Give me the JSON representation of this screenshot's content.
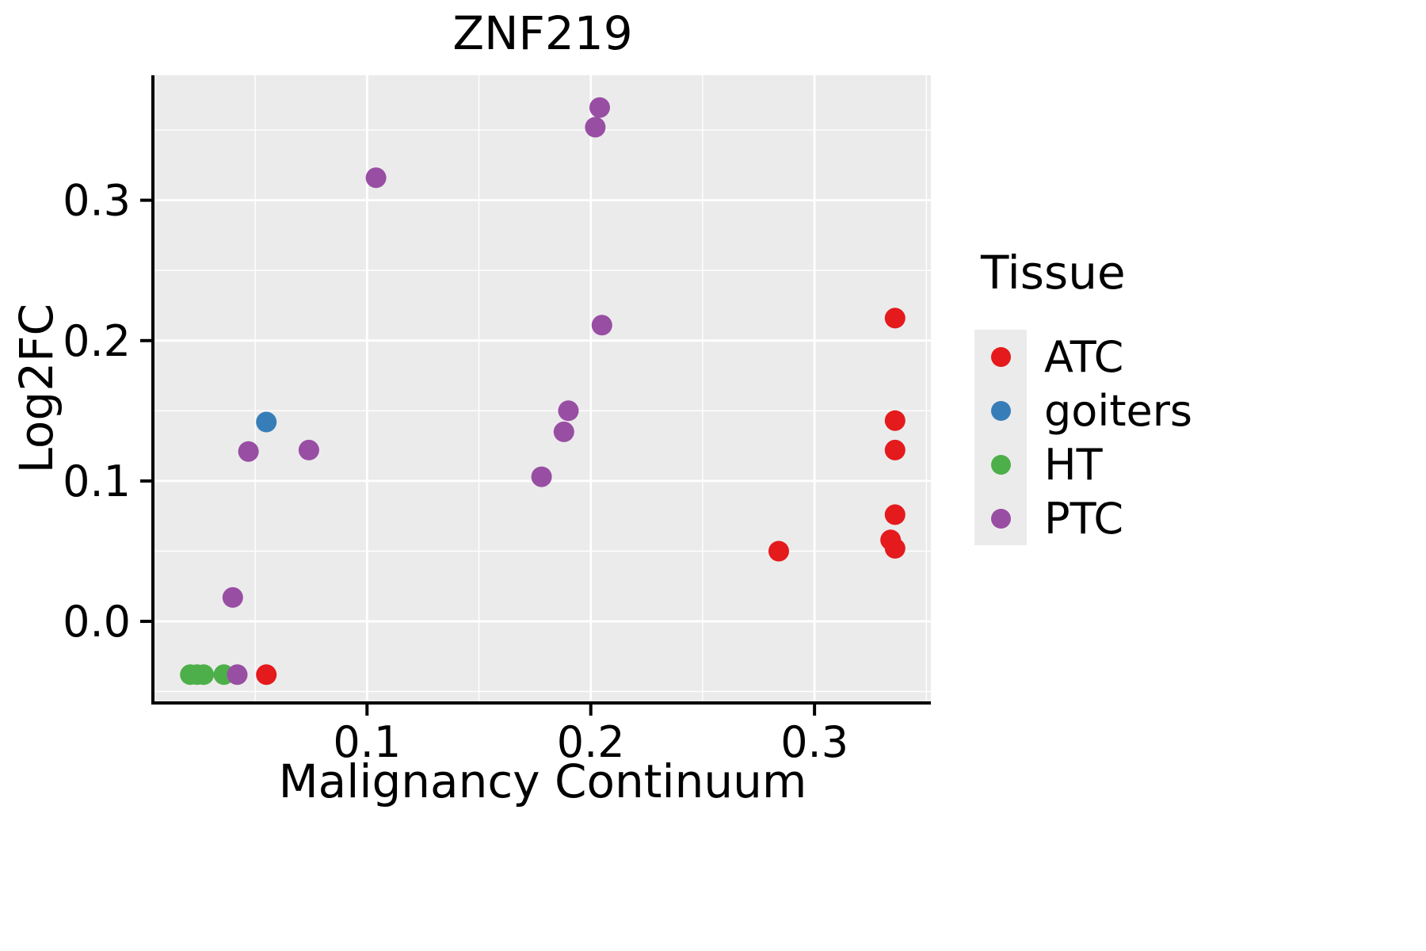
{
  "title": "ZNF219",
  "axes": {
    "x_label": "Malignancy Continuum",
    "y_label": "Log2FC"
  },
  "legend": {
    "title": "Tissue",
    "items": [
      {
        "label": "ATC",
        "color": "#E41A1C"
      },
      {
        "label": "goiters",
        "color": "#377EB8"
      },
      {
        "label": "HT",
        "color": "#4DAF4A"
      },
      {
        "label": "PTC",
        "color": "#984EA3"
      }
    ]
  },
  "chart_data": {
    "type": "scatter",
    "title": "ZNF219",
    "xlabel": "Malignancy Continuum",
    "ylabel": "Log2FC",
    "xlim": [
      0.005,
      0.352
    ],
    "ylim": [
      -0.057,
      0.389
    ],
    "x_ticks": {
      "values": [
        0.1,
        0.2,
        0.3
      ],
      "labels": [
        "0.1",
        "0.2",
        "0.3"
      ]
    },
    "y_ticks": {
      "values": [
        0.0,
        0.1,
        0.2,
        0.3
      ],
      "labels": [
        "0.0",
        "0.1",
        "0.2",
        "0.3"
      ]
    },
    "x_minor": [
      0.05,
      0.15,
      0.25,
      0.35
    ],
    "y_minor": [
      -0.05,
      0.05,
      0.15,
      0.25,
      0.35
    ],
    "panel_bg": "#EBEBEB",
    "grid_color": "#FFFFFF",
    "legend_position": "right",
    "series": [
      {
        "name": "ATC",
        "color": "#E41A1C",
        "points": [
          [
            0.055,
            -0.038
          ],
          [
            0.284,
            0.05
          ],
          [
            0.336,
            0.216
          ],
          [
            0.336,
            0.143
          ],
          [
            0.336,
            0.122
          ],
          [
            0.336,
            0.076
          ],
          [
            0.334,
            0.058
          ],
          [
            0.336,
            0.052
          ]
        ]
      },
      {
        "name": "goiters",
        "color": "#377EB8",
        "points": [
          [
            0.055,
            0.142
          ]
        ]
      },
      {
        "name": "HT",
        "color": "#4DAF4A",
        "points": [
          [
            0.021,
            -0.038
          ],
          [
            0.024,
            -0.038
          ],
          [
            0.027,
            -0.038
          ],
          [
            0.036,
            -0.038
          ]
        ]
      },
      {
        "name": "PTC",
        "color": "#984EA3",
        "points": [
          [
            0.204,
            0.366
          ],
          [
            0.202,
            0.352
          ],
          [
            0.104,
            0.316
          ],
          [
            0.205,
            0.211
          ],
          [
            0.19,
            0.15
          ],
          [
            0.188,
            0.135
          ],
          [
            0.178,
            0.103
          ],
          [
            0.047,
            0.121
          ],
          [
            0.074,
            0.122
          ],
          [
            0.04,
            0.017
          ],
          [
            0.042,
            -0.038
          ]
        ]
      }
    ]
  }
}
